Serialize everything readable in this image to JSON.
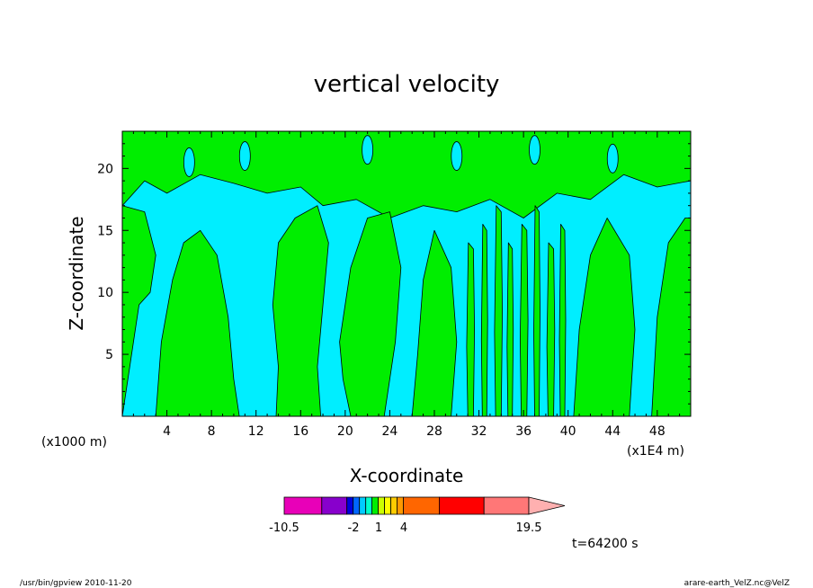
{
  "chart_data": {
    "type": "heatmap",
    "title": "vertical velocity",
    "xlabel": "X-coordinate",
    "ylabel": "Z-coordinate",
    "x_unit_label": "(x1000 m)",
    "x_multiplier_label": "(x1E4 m)",
    "xlim": [
      0,
      51
    ],
    "ylim": [
      0,
      23
    ],
    "x_ticks": [
      "4",
      "8",
      "12",
      "16",
      "20",
      "24",
      "28",
      "32",
      "36",
      "40",
      "44",
      "48"
    ],
    "y_ticks": [
      "5",
      "10",
      "15",
      "20"
    ],
    "x_tick_values": [
      4,
      8,
      12,
      16,
      20,
      24,
      28,
      32,
      36,
      40,
      44,
      48
    ],
    "y_tick_values": [
      5,
      10,
      15,
      20
    ],
    "fill_colors": {
      "negative": "#00eeff",
      "positive": "#00ee00",
      "contour_line": "#000000"
    },
    "colorbar": {
      "colors": [
        "#e800b8",
        "#8800cc",
        "#0000dd",
        "#0066ff",
        "#00ccff",
        "#00ffcc",
        "#00ee00",
        "#ccff00",
        "#ffff00",
        "#ffcc00",
        "#ff9900",
        "#ff6600",
        "#ff0000",
        "#ff7777",
        "#ffb0b0"
      ],
      "labels": [
        "-10.5",
        "-2",
        "1",
        "4",
        "19.5"
      ],
      "label_values": [
        -10.5,
        -2,
        1,
        4,
        19.5
      ]
    },
    "time_label": "t=64200 s"
  },
  "footer": {
    "left": "/usr/bin/gpview   2010-11-20",
    "right": "arare-earth_VelZ.nc@VelZ"
  }
}
